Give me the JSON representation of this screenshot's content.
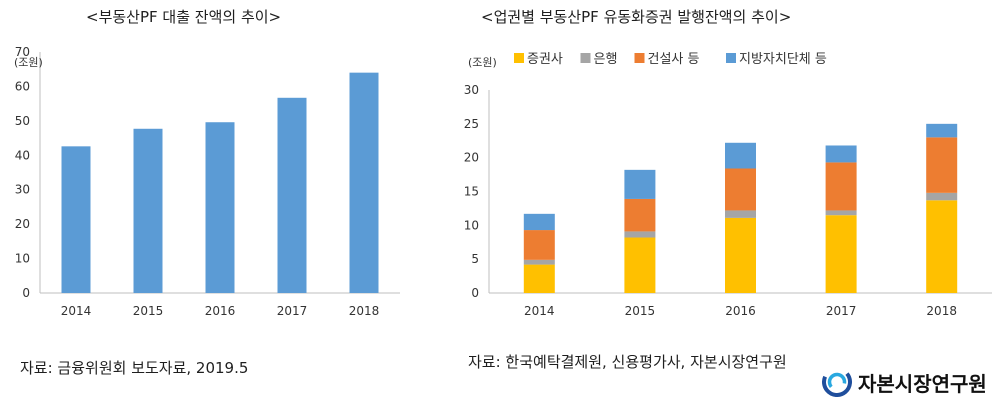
{
  "chart_data": [
    {
      "type": "bar",
      "title": "<부동산PF 대출 잔액의 추이>",
      "ylabel": "(조원)",
      "categories": [
        "2014",
        "2015",
        "2016",
        "2017",
        "2018"
      ],
      "values": [
        42.6,
        47.7,
        49.6,
        56.7,
        64.0
      ],
      "ylim": [
        0,
        70
      ],
      "yticks": [
        0,
        10,
        20,
        30,
        40,
        50,
        60,
        70
      ],
      "grid": false,
      "legend": "none",
      "color": "#5b9bd5",
      "source": "자료: 금융위원회 보도자료, 2019.5"
    },
    {
      "type": "bar",
      "stacked": true,
      "title": "<업권별 부동산PF 유동화증권 발행잔액의 추이>",
      "ylabel": "(조원)",
      "categories": [
        "2014",
        "2015",
        "2016",
        "2017",
        "2018"
      ],
      "series": [
        {
          "name": "증권사",
          "color": "#ffc000",
          "values": [
            4.2,
            8.2,
            11.1,
            11.5,
            13.7
          ]
        },
        {
          "name": "은행",
          "color": "#a5a5a5",
          "values": [
            0.7,
            0.9,
            1.1,
            0.7,
            1.1
          ]
        },
        {
          "name": "건설사 등",
          "color": "#ed7d31",
          "values": [
            4.4,
            4.8,
            6.2,
            7.1,
            8.2
          ]
        },
        {
          "name": "지방자치단체 등",
          "color": "#5b9bd5",
          "values": [
            2.4,
            4.3,
            3.8,
            2.5,
            2.0
          ]
        }
      ],
      "ylim": [
        0,
        30
      ],
      "yticks": [
        0,
        5,
        10,
        15,
        20,
        25,
        30
      ],
      "grid": false,
      "legend": "top",
      "source": "자료: 한국예탁결제원, 신용평가사, 자본시장연구원"
    }
  ],
  "logo": {
    "text": "자본시장연구원",
    "icon": "kcmi-swirl-icon",
    "colors": [
      "#1f4e9c",
      "#29a8e0"
    ]
  }
}
